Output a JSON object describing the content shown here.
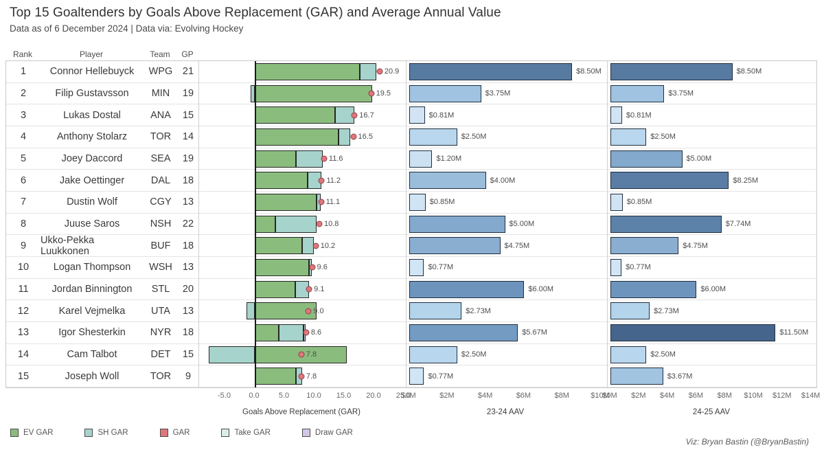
{
  "title": "Top 15 Goaltenders by Goals Above Replacement (GAR) and Average Annual Value",
  "subtitle": "Data as of 6 December 2024 | Data via: Evolving Hockey",
  "credit": "Viz: Bryan Bastin (@BryanBastin)",
  "table": {
    "headers": {
      "rank": "Rank",
      "player": "Player",
      "team": "Team",
      "gp": "GP"
    }
  },
  "chart_data": {
    "type": "bar",
    "description": "Table of top 15 NHL goaltenders with stacked diverging GAR bars (EV GAR + SH GAR, dot = total GAR) and two horizontal bar panels for 23-24 and 24-25 average annual value",
    "rows": [
      {
        "rank": "1",
        "player": "Connor Hellebuyck",
        "team": "WPG",
        "gp": "21",
        "ev_gar": 17.6,
        "sh_gar": 2.8,
        "draw_gar": 0,
        "gar": 20.9,
        "gar_label": "20.9",
        "aav_2324": 8.5,
        "aav_2324_label": "$8.50M",
        "aav_2425": 8.5,
        "aav_2425_label": "$8.50M"
      },
      {
        "rank": "2",
        "player": "Filip Gustavsson",
        "team": "MIN",
        "gp": "19",
        "ev_gar": 19.7,
        "sh_gar": -0.7,
        "draw_gar": 0,
        "gar": 19.5,
        "gar_label": "19.5",
        "aav_2324": 3.75,
        "aav_2324_label": "$3.75M",
        "aav_2425": 3.75,
        "aav_2425_label": "$3.75M"
      },
      {
        "rank": "3",
        "player": "Lukas Dostal",
        "team": "ANA",
        "gp": "15",
        "ev_gar": 13.5,
        "sh_gar": 3.2,
        "draw_gar": 0,
        "gar": 16.7,
        "gar_label": "16.7",
        "aav_2324": 0.81,
        "aav_2324_label": "$0.81M",
        "aav_2425": 0.81,
        "aav_2425_label": "$0.81M"
      },
      {
        "rank": "4",
        "player": "Anthony Stolarz",
        "team": "TOR",
        "gp": "14",
        "ev_gar": 14.0,
        "sh_gar": 2.0,
        "draw_gar": 0,
        "gar": 16.5,
        "gar_label": "16.5",
        "aav_2324": 2.5,
        "aav_2324_label": "$2.50M",
        "aav_2425": 2.5,
        "aav_2425_label": "$2.50M"
      },
      {
        "rank": "5",
        "player": "Joey Daccord",
        "team": "SEA",
        "gp": "19",
        "ev_gar": 6.9,
        "sh_gar": 4.5,
        "draw_gar": 0,
        "gar": 11.6,
        "gar_label": "11.6",
        "aav_2324": 1.2,
        "aav_2324_label": "$1.20M",
        "aav_2425": 5.0,
        "aav_2425_label": "$5.00M"
      },
      {
        "rank": "6",
        "player": "Jake Oettinger",
        "team": "DAL",
        "gp": "18",
        "ev_gar": 8.8,
        "sh_gar": 2.3,
        "draw_gar": 0,
        "gar": 11.2,
        "gar_label": "11.2",
        "aav_2324": 4.0,
        "aav_2324_label": "$4.00M",
        "aav_2425": 8.25,
        "aav_2425_label": "$8.25M"
      },
      {
        "rank": "7",
        "player": "Dustin Wolf",
        "team": "CGY",
        "gp": "13",
        "ev_gar": 10.3,
        "sh_gar": 0.7,
        "draw_gar": 0,
        "gar": 11.1,
        "gar_label": "11.1",
        "aav_2324": 0.85,
        "aav_2324_label": "$0.85M",
        "aav_2425": 0.85,
        "aav_2425_label": "$0.85M"
      },
      {
        "rank": "8",
        "player": "Juuse Saros",
        "team": "NSH",
        "gp": "22",
        "ev_gar": 3.4,
        "sh_gar": 7.0,
        "draw_gar": 0,
        "gar": 10.8,
        "gar_label": "10.8",
        "aav_2324": 5.0,
        "aav_2324_label": "$5.00M",
        "aav_2425": 7.74,
        "aav_2425_label": "$7.74M"
      },
      {
        "rank": "9",
        "player": "Ukko-Pekka Luukkonen",
        "team": "BUF",
        "gp": "18",
        "ev_gar": 7.9,
        "sh_gar": 2.0,
        "draw_gar": 0,
        "gar": 10.2,
        "gar_label": "10.2",
        "aav_2324": 4.75,
        "aav_2324_label": "$4.75M",
        "aav_2425": 4.75,
        "aav_2425_label": "$4.75M"
      },
      {
        "rank": "10",
        "player": "Logan Thompson",
        "team": "WSH",
        "gp": "13",
        "ev_gar": 9.1,
        "sh_gar": 0.4,
        "draw_gar": 0,
        "gar": 9.6,
        "gar_label": "9.6",
        "aav_2324": 0.77,
        "aav_2324_label": "$0.77M",
        "aav_2425": 0.77,
        "aav_2425_label": "$0.77M"
      },
      {
        "rank": "11",
        "player": "Jordan Binnington",
        "team": "STL",
        "gp": "20",
        "ev_gar": 6.8,
        "sh_gar": 2.3,
        "draw_gar": 0,
        "gar": 9.1,
        "gar_label": "9.1",
        "aav_2324": 6.0,
        "aav_2324_label": "$6.00M",
        "aav_2425": 6.0,
        "aav_2425_label": "$6.00M"
      },
      {
        "rank": "12",
        "player": "Karel Vejmelka",
        "team": "UTA",
        "gp": "13",
        "ev_gar": 10.4,
        "sh_gar": -1.4,
        "draw_gar": 0,
        "gar": 9.0,
        "gar_label": "9.0",
        "aav_2324": 2.73,
        "aav_2324_label": "$2.73M",
        "aav_2425": 2.73,
        "aav_2425_label": "$2.73M"
      },
      {
        "rank": "13",
        "player": "Igor Shesterkin",
        "team": "NYR",
        "gp": "18",
        "ev_gar": 4.0,
        "sh_gar": 4.2,
        "draw_gar": 0.3,
        "gar": 8.6,
        "gar_label": "8.6",
        "aav_2324": 5.67,
        "aav_2324_label": "$5.67M",
        "aav_2425": 11.5,
        "aav_2425_label": "$11.50M"
      },
      {
        "rank": "14",
        "player": "Cam Talbot",
        "team": "DET",
        "gp": "15",
        "ev_gar": 15.4,
        "sh_gar": -7.7,
        "draw_gar": 0,
        "gar": 7.8,
        "gar_label": "7.8",
        "aav_2324": 2.5,
        "aav_2324_label": "$2.50M",
        "aav_2425": 2.5,
        "aav_2425_label": "$2.50M"
      },
      {
        "rank": "15",
        "player": "Joseph Woll",
        "team": "TOR",
        "gp": "9",
        "ev_gar": 6.9,
        "sh_gar": 1.0,
        "draw_gar": 0,
        "gar": 7.8,
        "gar_label": "7.8",
        "aav_2324": 0.77,
        "aav_2324_label": "$0.77M",
        "aav_2425": 3.67,
        "aav_2425_label": "$3.67M"
      }
    ],
    "gar_axis": {
      "title": "Goals Above Replacement (GAR)",
      "range": [
        -9.5,
        25.5
      ],
      "ticks": [
        {
          "v": -5,
          "label": "-5.0"
        },
        {
          "v": 0,
          "label": "0.0"
        },
        {
          "v": 5,
          "label": "5.0"
        },
        {
          "v": 10,
          "label": "10.0"
        },
        {
          "v": 15,
          "label": "15.0"
        },
        {
          "v": 20,
          "label": "20.0"
        },
        {
          "v": 25,
          "label": "25.0"
        }
      ]
    },
    "aav_2324_axis": {
      "title": "23-24 AAV",
      "range": [
        0,
        10.5
      ],
      "ticks": [
        {
          "v": 0,
          "label": "$0M"
        },
        {
          "v": 2,
          "label": "$2M"
        },
        {
          "v": 4,
          "label": "$4M"
        },
        {
          "v": 6,
          "label": "$6M"
        },
        {
          "v": 8,
          "label": "$8M"
        },
        {
          "v": 10,
          "label": "$10M"
        }
      ]
    },
    "aav_2425_axis": {
      "title": "24-25 AAV",
      "range": [
        0,
        14.4
      ],
      "ticks": [
        {
          "v": 0,
          "label": "$0M"
        },
        {
          "v": 2,
          "label": "$2M"
        },
        {
          "v": 4,
          "label": "$4M"
        },
        {
          "v": 6,
          "label": "$6M"
        },
        {
          "v": 8,
          "label": "$8M"
        },
        {
          "v": 10,
          "label": "$10M"
        },
        {
          "v": 12,
          "label": "$12M"
        },
        {
          "v": 14,
          "label": "$14M"
        }
      ]
    }
  },
  "legend": [
    {
      "label": "EV GAR",
      "color": "#8abd7d"
    },
    {
      "label": "SH GAR",
      "color": "#a6d3cc"
    },
    {
      "label": "GAR",
      "color": "#e0767c"
    },
    {
      "label": "Take GAR",
      "color": "#daeee5"
    },
    {
      "label": "Draw GAR",
      "color": "#d3c8e4"
    }
  ],
  "colors": {
    "ev_gar": "#8abd7d",
    "sh_gar": "#a6d3cc",
    "draw_gar": "#d3c8e4",
    "gar_dot": "#e0767c",
    "aav_scale": [
      {
        "v": 0,
        "rgb": [
          222,
          235,
          247
        ]
      },
      {
        "v": 3,
        "rgb": [
          176,
          210,
          235
        ]
      },
      {
        "v": 6,
        "rgb": [
          109,
          148,
          189
        ]
      },
      {
        "v": 9,
        "rgb": [
          82,
          117,
          155
        ]
      },
      {
        "v": 12,
        "rgb": [
          68,
          98,
          138
        ]
      }
    ]
  }
}
